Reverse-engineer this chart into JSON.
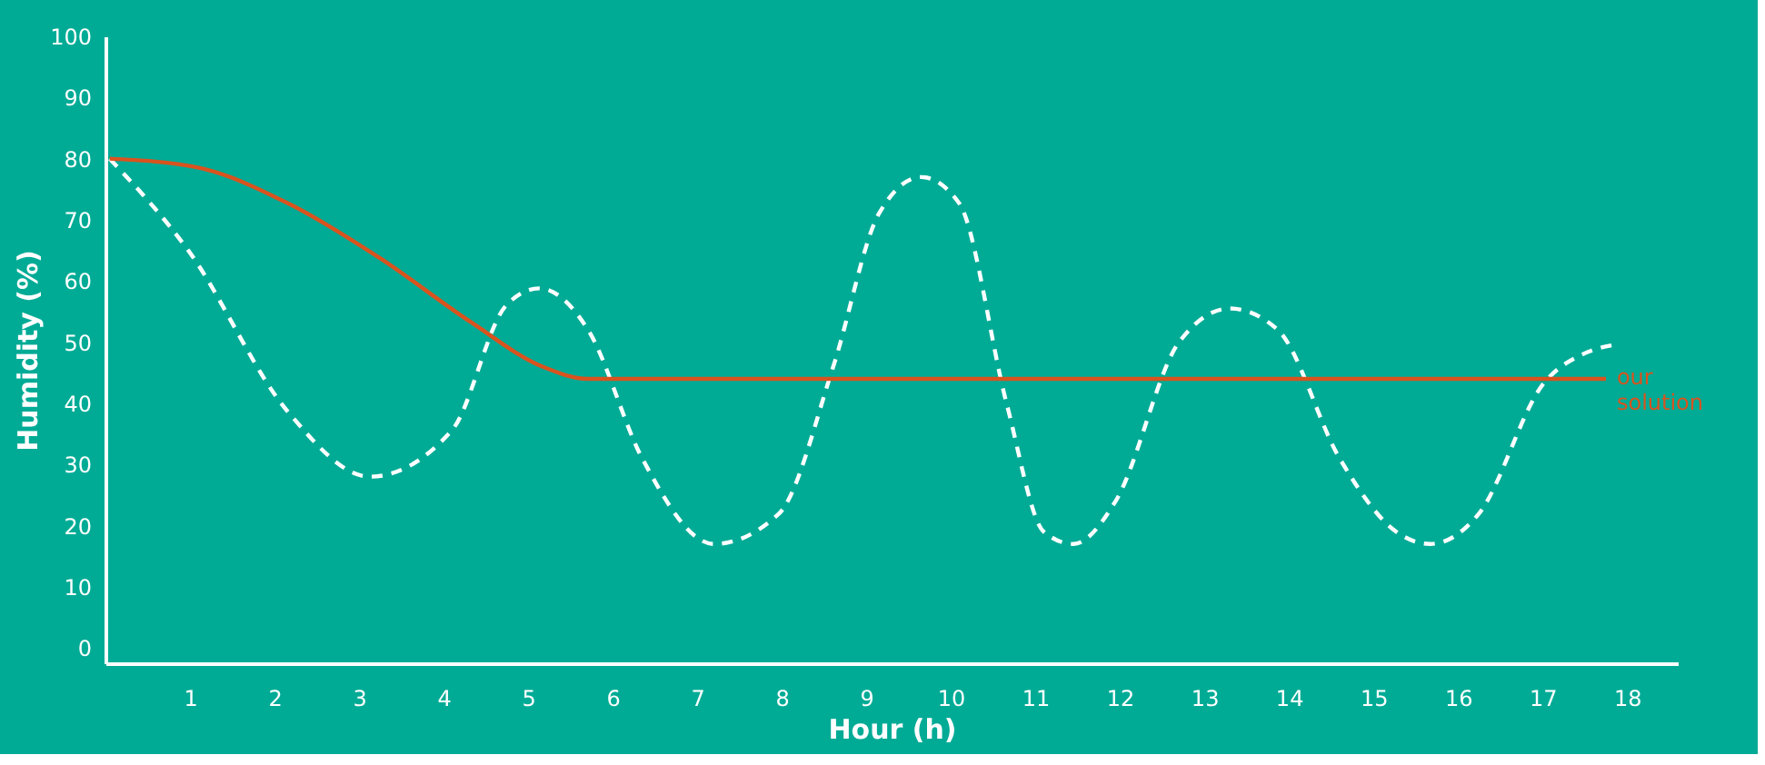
{
  "chart_data": {
    "type": "line",
    "xlabel": "Hour (h)",
    "ylabel": "Humidity (%)",
    "xlim": [
      0,
      18.6
    ],
    "xticks": [
      1,
      2,
      3,
      4,
      5,
      6,
      7,
      8,
      9,
      10,
      11,
      12,
      13,
      14,
      15,
      16,
      17,
      18
    ],
    "ylim": [
      -2.5,
      100
    ],
    "yticks": [
      0,
      10,
      20,
      30,
      40,
      50,
      60,
      70,
      80,
      90,
      100
    ],
    "grid": false,
    "marker": "none",
    "series": [
      {
        "color": "#ffffff",
        "line_style": "dashed",
        "x": [
          0.05,
          0.98,
          2.16,
          3.13,
          4.1,
          4.74,
          5.13,
          5.71,
          6.35,
          7.2,
          7.97,
          8.61,
          9.15,
          9.65,
          10.1,
          10.66,
          11.1,
          11.45,
          11.95,
          12.7,
          13.3,
          13.87,
          14.6,
          15.27,
          15.67,
          16.25,
          17.0,
          17.54,
          17.86
        ],
        "values": [
          80,
          65,
          38.6,
          28,
          35.6,
          56,
          58.8,
          52,
          31,
          17,
          22,
          46,
          71,
          77,
          72.7,
          40,
          19,
          17,
          24,
          50,
          55.5,
          52,
          31,
          19,
          17,
          22,
          43,
          48.4,
          49.6
        ]
      },
      {
        "name": "our solution",
        "color": "#d9531e",
        "line_style": "solid",
        "x": [
          0.05,
          1.08,
          2.16,
          3.24,
          4.31,
          5.17,
          5.71,
          17.75
        ],
        "values": [
          80,
          78.6,
          72.7,
          63.8,
          53.4,
          46,
          44,
          44
        ]
      }
    ]
  }
}
